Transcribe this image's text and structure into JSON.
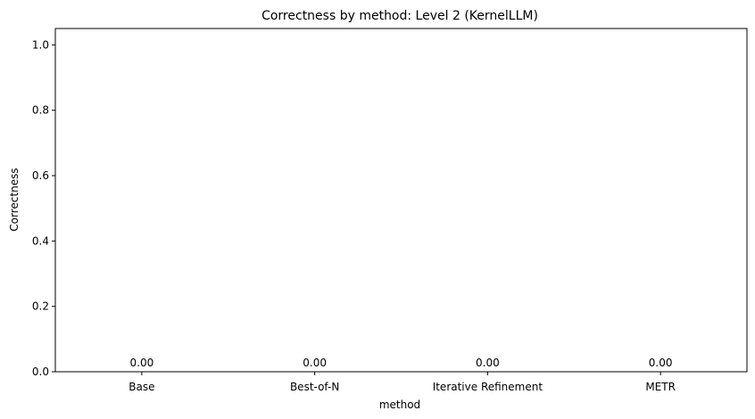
{
  "chart_data": {
    "type": "bar",
    "title": "Correctness by method: Level 2 (KernelLLM)",
    "xlabel": "method",
    "ylabel": "Correctness",
    "categories": [
      "Base",
      "Best-of-N",
      "Iterative Refinement",
      "METR"
    ],
    "values": [
      0.0,
      0.0,
      0.0,
      0.0
    ],
    "data_labels": [
      "0.00",
      "0.00",
      "0.00",
      "0.00"
    ],
    "ylim": [
      0,
      1.05
    ],
    "yticks": [
      0.0,
      0.2,
      0.4,
      0.6,
      0.8,
      1.0
    ],
    "ytick_labels": [
      "0.0",
      "0.2",
      "0.4",
      "0.6",
      "0.8",
      "1.0"
    ],
    "grid": false,
    "legend": "none",
    "bar_color": "#1f77b4"
  }
}
